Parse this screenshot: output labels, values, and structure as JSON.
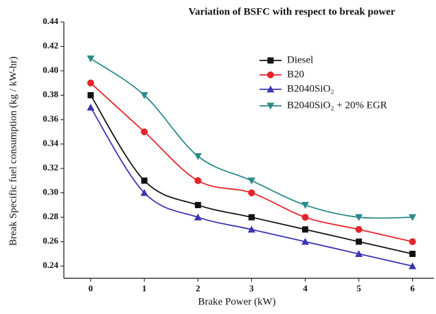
{
  "chart_data": {
    "type": "line",
    "title": "Variation of BSFC with respect to break power",
    "x_label": "Brake Power (kW)",
    "y_label": "Break Specific fuel consumption (kg / kW-hr)",
    "x": [
      0,
      1,
      2,
      3,
      4,
      5,
      6
    ],
    "xlim": [
      -0.5,
      6.4
    ],
    "xticks": [
      0,
      1,
      2,
      3,
      4,
      5,
      6
    ],
    "ylim": [
      0.23,
      0.44
    ],
    "yticks": [
      0.24,
      0.26,
      0.28,
      {
        "value": 0.3,
        "label": "0.30"
      },
      0.32,
      0.34,
      0.36,
      0.38,
      {
        "value": 0.4,
        "label": "0.40"
      },
      0.42,
      0.44
    ],
    "legend": "upper right",
    "series": [
      {
        "name": "Diesel",
        "color": "#111111",
        "marker": "square",
        "values": [
          0.38,
          0.31,
          0.29,
          0.28,
          0.27,
          0.26,
          0.25
        ]
      },
      {
        "name": "B20",
        "color": "#e3242b",
        "marker": "circle",
        "values": [
          0.39,
          0.35,
          0.31,
          0.3,
          0.28,
          0.27,
          0.26
        ]
      },
      {
        "name": "B2040SiO₂",
        "color": "#3b34b3",
        "marker": "triangle-up",
        "values": [
          0.37,
          0.3,
          0.28,
          0.27,
          0.26,
          0.25,
          0.24
        ]
      },
      {
        "name": "B2040SiO₂ + 20% EGR",
        "color": "#2b8a8a",
        "marker": "triangle-down",
        "values": [
          0.41,
          0.38,
          0.33,
          0.31,
          0.29,
          0.28,
          0.28
        ]
      }
    ]
  }
}
